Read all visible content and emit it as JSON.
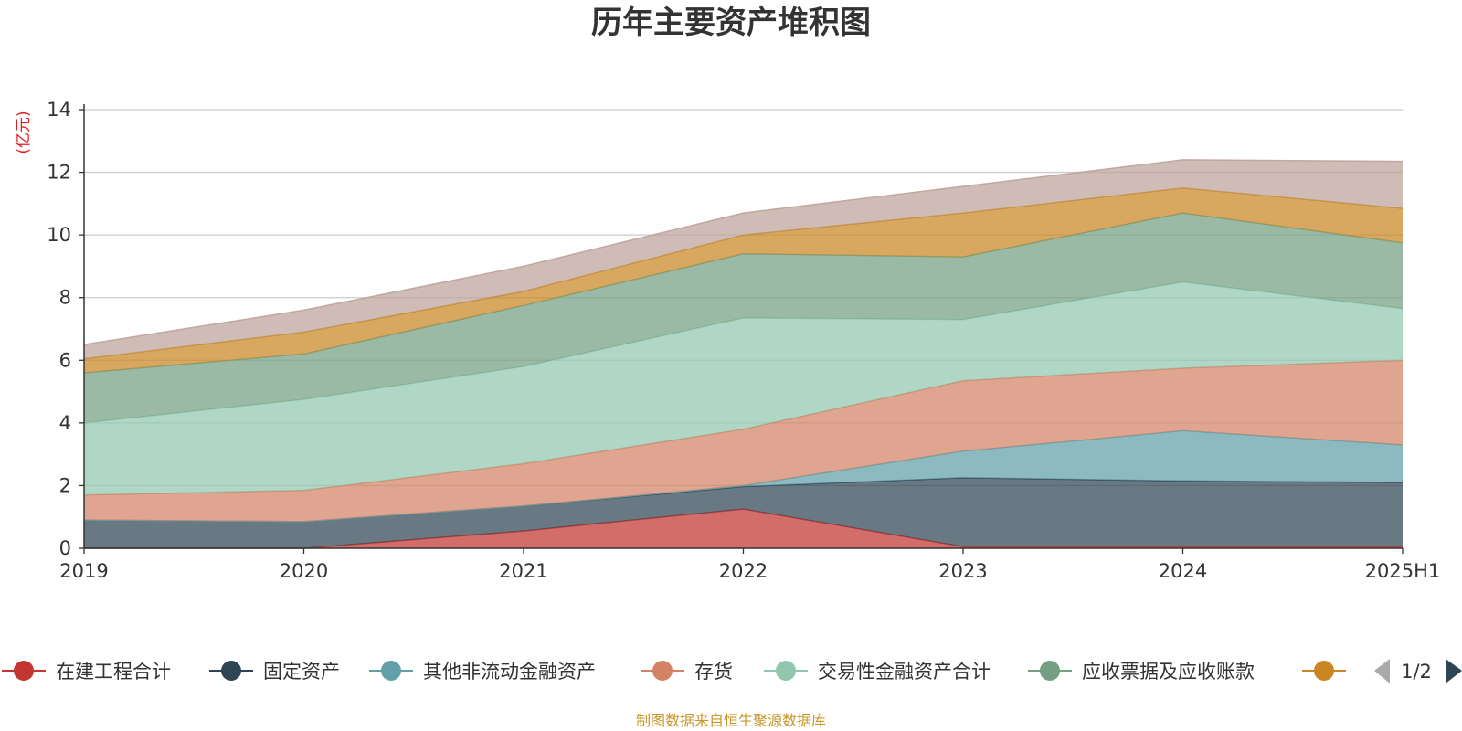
{
  "chart_data": {
    "type": "area",
    "title": "历年主要资产堆积图",
    "unit_label": "(亿元)",
    "x": [
      "2019",
      "2020",
      "2021",
      "2022",
      "2023",
      "2024",
      "2025H1"
    ],
    "yticks": [
      "0",
      "2",
      "4",
      "6",
      "8",
      "10",
      "12",
      "14"
    ],
    "ylim": [
      0,
      14
    ],
    "stacked": true,
    "grid": true,
    "series": [
      {
        "name": "在建工程合计",
        "color": "#c23531",
        "values": [
          0.0,
          0.0,
          0.55,
          1.25,
          0.05,
          0.05,
          0.05
        ]
      },
      {
        "name": "固定资产",
        "color": "#2f4554",
        "values": [
          0.9,
          0.85,
          0.8,
          0.72,
          2.2,
          2.1,
          2.05
        ]
      },
      {
        "name": "其他非流动金融资产",
        "color": "#61a0a8",
        "values": [
          0.0,
          0.0,
          0.0,
          0.03,
          0.85,
          1.6,
          1.2
        ]
      },
      {
        "name": "存货",
        "color": "#d48265",
        "values": [
          0.8,
          1.0,
          1.35,
          1.8,
          2.25,
          2.0,
          2.7
        ]
      },
      {
        "name": "交易性金融资产合计",
        "color": "#91c7ae",
        "values": [
          2.3,
          2.9,
          3.1,
          3.55,
          1.95,
          2.75,
          1.65
        ]
      },
      {
        "name": "应收票据及应收账款",
        "color": "#749f83",
        "values": [
          1.6,
          1.45,
          1.95,
          2.05,
          2.0,
          2.2,
          2.1
        ]
      },
      {
        "name": "",
        "color": "#ca8622",
        "values": [
          0.45,
          0.7,
          0.45,
          0.6,
          1.4,
          0.8,
          1.1
        ]
      },
      {
        "name": "",
        "color": "#bda29a",
        "values": [
          0.45,
          0.7,
          0.8,
          0.7,
          0.85,
          0.9,
          1.5
        ]
      }
    ],
    "legend": {
      "position": "bottom",
      "items": [
        "在建工程合计",
        "固定资产",
        "其他非流动金融资产",
        "存货",
        "交易性金融资产合计",
        "应收票据及应收账款",
        ""
      ],
      "page": "1/2"
    },
    "source": "制图数据来自恒生聚源数据库"
  }
}
